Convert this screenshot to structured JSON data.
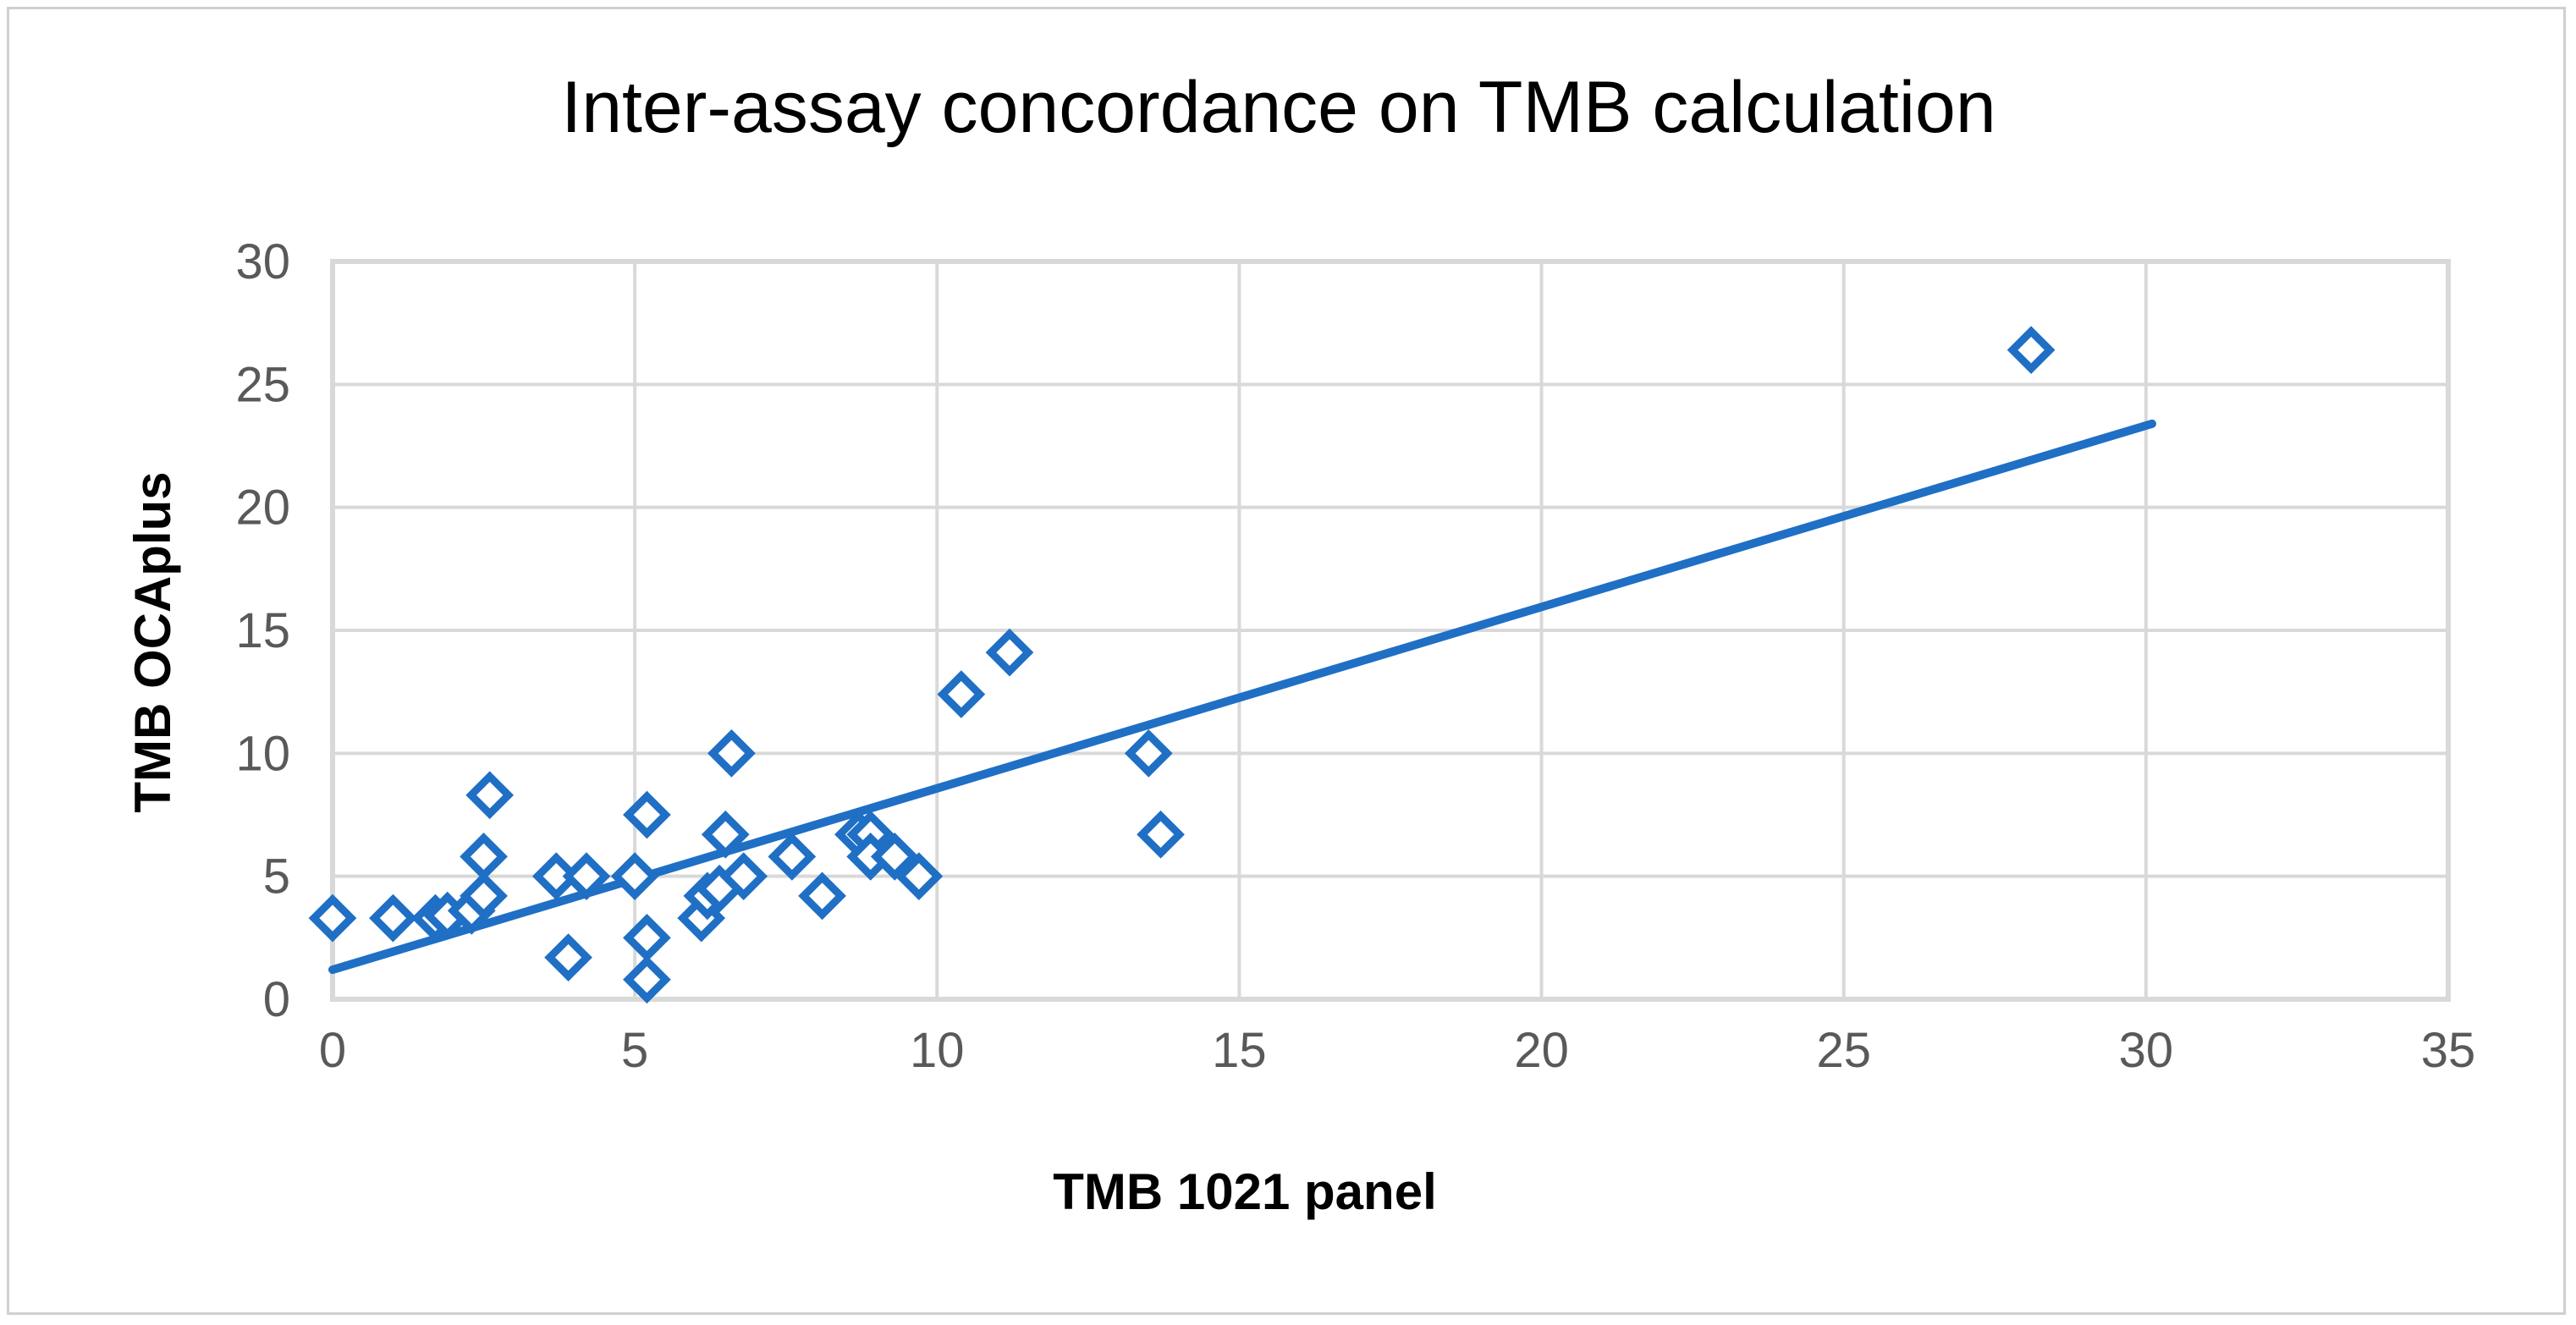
{
  "chart_data": {
    "type": "scatter",
    "title": "Inter-assay concordance on TMB calculation",
    "xlabel": "TMB 1021 panel",
    "ylabel": "TMB OCAplus",
    "xlim": [
      0,
      35
    ],
    "ylim": [
      0,
      30
    ],
    "x_ticks": [
      "0",
      "5",
      "10",
      "15",
      "20",
      "25",
      "30",
      "35"
    ],
    "y_ticks": [
      "0",
      "5",
      "10",
      "15",
      "20",
      "25",
      "30"
    ],
    "grid": true,
    "legend": "none",
    "marker": "open-diamond",
    "color": "#1f6fc5",
    "series": [
      {
        "points": [
          {
            "x": 0,
            "y": 3.3
          },
          {
            "x": 1.0,
            "y": 3.3
          },
          {
            "x": 1.7,
            "y": 3.3
          },
          {
            "x": 1.9,
            "y": 3.4
          },
          {
            "x": 2.3,
            "y": 3.6
          },
          {
            "x": 2.5,
            "y": 4.2
          },
          {
            "x": 2.5,
            "y": 5.8
          },
          {
            "x": 2.6,
            "y": 8.3
          },
          {
            "x": 3.7,
            "y": 5.0
          },
          {
            "x": 3.9,
            "y": 1.7
          },
          {
            "x": 4.2,
            "y": 5.0
          },
          {
            "x": 5.0,
            "y": 5.0
          },
          {
            "x": 5.2,
            "y": 7.5
          },
          {
            "x": 5.2,
            "y": 2.5
          },
          {
            "x": 5.2,
            "y": 0.8
          },
          {
            "x": 6.1,
            "y": 3.3
          },
          {
            "x": 6.2,
            "y": 4.2
          },
          {
            "x": 6.4,
            "y": 4.5
          },
          {
            "x": 6.5,
            "y": 6.7
          },
          {
            "x": 6.6,
            "y": 10.0
          },
          {
            "x": 6.8,
            "y": 5.0
          },
          {
            "x": 7.6,
            "y": 5.8
          },
          {
            "x": 8.1,
            "y": 4.2
          },
          {
            "x": 8.7,
            "y": 6.7
          },
          {
            "x": 8.9,
            "y": 6.7
          },
          {
            "x": 8.9,
            "y": 5.8
          },
          {
            "x": 9.3,
            "y": 5.8
          },
          {
            "x": 9.7,
            "y": 5.0
          },
          {
            "x": 10.4,
            "y": 12.4
          },
          {
            "x": 11.2,
            "y": 14.1
          },
          {
            "x": 13.5,
            "y": 10.0
          },
          {
            "x": 13.7,
            "y": 6.7
          },
          {
            "x": 28.1,
            "y": 26.4
          }
        ]
      }
    ],
    "trendline": {
      "type": "linear",
      "from": {
        "x": 0,
        "y": 1.2
      },
      "to": {
        "x": 30.1,
        "y": 23.4
      }
    }
  }
}
